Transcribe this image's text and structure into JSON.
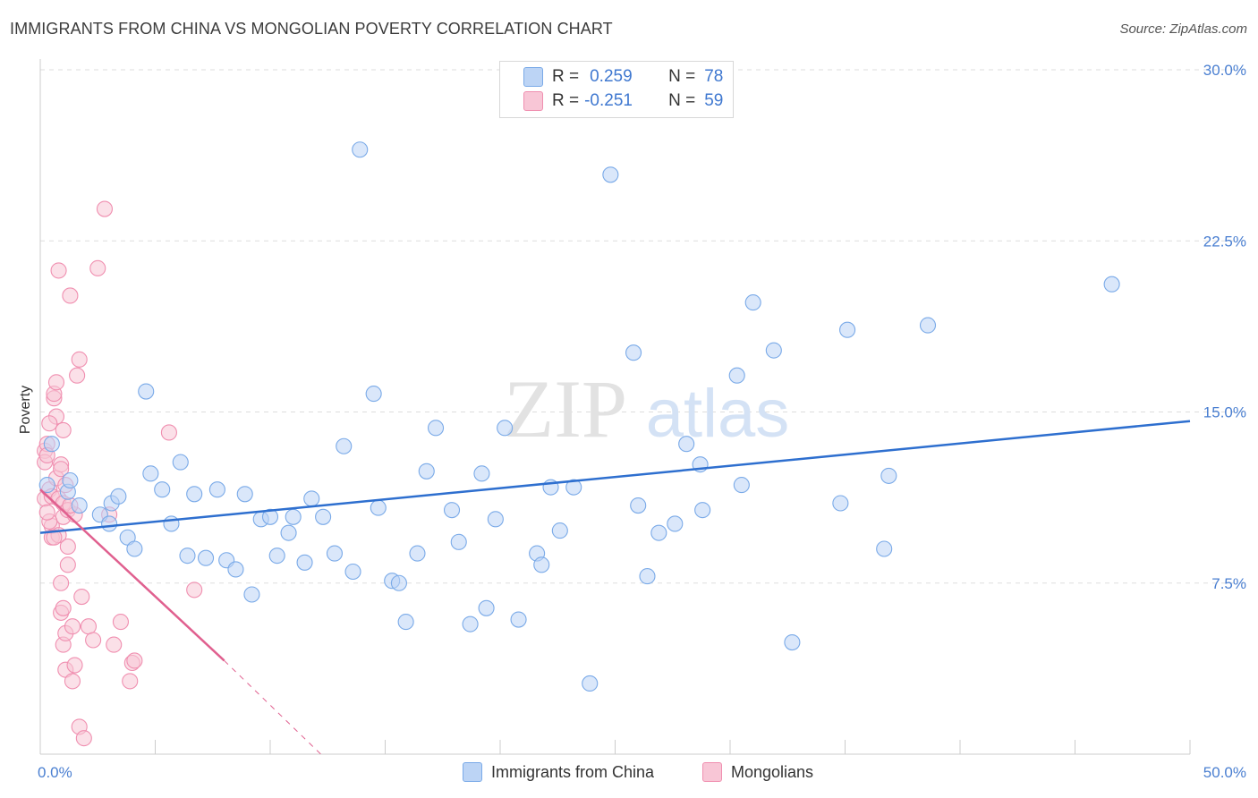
{
  "title": "IMMIGRANTS FROM CHINA VS MONGOLIAN POVERTY CORRELATION CHART",
  "source": "Source: ZipAtlas.com",
  "watermark": {
    "zip": "ZIP",
    "atlas": "atlas"
  },
  "colors": {
    "blue": "#7aaae8",
    "blue_fill": "#bcd4f5",
    "blue_line": "#2e6fcf",
    "pink": "#f08fb0",
    "pink_fill": "#f8c6d6",
    "pink_line": "#e0608f",
    "tick_text": "#4a7fd1",
    "grid": "#dddddd"
  },
  "legend": {
    "rows": [
      {
        "r_label": "R =",
        "r_value": "0.259",
        "n_label": "N =",
        "n_value": "78"
      },
      {
        "r_label": "R =",
        "r_value": "-0.251",
        "n_label": "N =",
        "n_value": "59"
      }
    ]
  },
  "bottom_legend": [
    "Immigrants from China",
    "Mongolians"
  ],
  "chart_data": {
    "type": "scatter",
    "xlabel": "",
    "ylabel": "Poverty",
    "xlim": [
      0,
      50
    ],
    "ylim": [
      0,
      30
    ],
    "x_tick_labels": [
      {
        "value": 0,
        "label": "0.0%"
      },
      {
        "value": 50,
        "label": "50.0%"
      }
    ],
    "y_tick_labels": [
      {
        "value": 7.5,
        "label": "7.5%"
      },
      {
        "value": 15,
        "label": "15.0%"
      },
      {
        "value": 22.5,
        "label": "22.5%"
      },
      {
        "value": 30,
        "label": "30.0%"
      }
    ],
    "grid": true,
    "legend_position": "top-center",
    "series": [
      {
        "name": "Immigrants from China",
        "color": "#7aaae8",
        "r": 0.259,
        "n": 78,
        "trend": {
          "x": [
            0,
            50
          ],
          "y": [
            9.7,
            14.6
          ]
        },
        "points": [
          [
            0.5,
            13.6
          ],
          [
            0.3,
            11.8
          ],
          [
            1.2,
            11.5
          ],
          [
            1.3,
            12.0
          ],
          [
            1.7,
            10.9
          ],
          [
            2.6,
            10.5
          ],
          [
            3.0,
            10.1
          ],
          [
            3.1,
            11.0
          ],
          [
            3.4,
            11.3
          ],
          [
            3.8,
            9.5
          ],
          [
            4.1,
            9.0
          ],
          [
            4.6,
            15.9
          ],
          [
            4.8,
            12.3
          ],
          [
            5.3,
            11.6
          ],
          [
            5.7,
            10.1
          ],
          [
            6.1,
            12.8
          ],
          [
            6.4,
            8.7
          ],
          [
            6.7,
            11.4
          ],
          [
            7.2,
            8.6
          ],
          [
            7.7,
            11.6
          ],
          [
            8.1,
            8.5
          ],
          [
            8.5,
            8.1
          ],
          [
            8.9,
            11.4
          ],
          [
            9.2,
            7.0
          ],
          [
            9.6,
            10.3
          ],
          [
            10.0,
            10.4
          ],
          [
            10.3,
            8.7
          ],
          [
            10.8,
            9.7
          ],
          [
            11.0,
            10.4
          ],
          [
            11.5,
            8.4
          ],
          [
            11.8,
            11.2
          ],
          [
            12.3,
            10.4
          ],
          [
            12.8,
            8.8
          ],
          [
            13.2,
            13.5
          ],
          [
            13.6,
            8.0
          ],
          [
            13.9,
            26.5
          ],
          [
            14.5,
            15.8
          ],
          [
            14.7,
            10.8
          ],
          [
            15.3,
            7.6
          ],
          [
            15.6,
            7.5
          ],
          [
            15.9,
            5.8
          ],
          [
            16.4,
            8.8
          ],
          [
            16.8,
            12.4
          ],
          [
            17.2,
            14.3
          ],
          [
            17.9,
            10.7
          ],
          [
            18.2,
            9.3
          ],
          [
            18.7,
            5.7
          ],
          [
            19.2,
            12.3
          ],
          [
            19.4,
            6.4
          ],
          [
            19.8,
            10.3
          ],
          [
            20.2,
            14.3
          ],
          [
            20.8,
            5.9
          ],
          [
            21.6,
            8.8
          ],
          [
            21.8,
            8.3
          ],
          [
            22.2,
            11.7
          ],
          [
            22.6,
            9.8
          ],
          [
            23.2,
            11.7
          ],
          [
            23.9,
            3.1
          ],
          [
            24.8,
            25.4
          ],
          [
            25.8,
            17.6
          ],
          [
            26.0,
            10.9
          ],
          [
            26.4,
            7.8
          ],
          [
            26.9,
            9.7
          ],
          [
            27.6,
            10.1
          ],
          [
            28.1,
            13.6
          ],
          [
            28.7,
            12.7
          ],
          [
            28.8,
            10.7
          ],
          [
            30.3,
            16.6
          ],
          [
            30.5,
            11.8
          ],
          [
            31.0,
            19.8
          ],
          [
            31.9,
            17.7
          ],
          [
            32.7,
            4.9
          ],
          [
            34.8,
            11.0
          ],
          [
            35.1,
            18.6
          ],
          [
            36.7,
            9.0
          ],
          [
            36.9,
            12.2
          ],
          [
            38.6,
            18.8
          ],
          [
            46.6,
            20.6
          ]
        ]
      },
      {
        "name": "Mongolians",
        "color": "#f08fb0",
        "r": -0.251,
        "n": 59,
        "trend": {
          "x": [
            0,
            8
          ],
          "y": [
            11.6,
            4.1
          ],
          "dashed_to": {
            "x": 12.2,
            "y": 0
          }
        },
        "points": [
          [
            0.2,
            13.3
          ],
          [
            0.2,
            11.2
          ],
          [
            0.2,
            12.8
          ],
          [
            0.3,
            13.6
          ],
          [
            0.3,
            13.1
          ],
          [
            0.4,
            11.6
          ],
          [
            0.5,
            11.3
          ],
          [
            0.5,
            10.0
          ],
          [
            0.5,
            9.5
          ],
          [
            0.6,
            15.6
          ],
          [
            0.6,
            15.8
          ],
          [
            0.7,
            16.3
          ],
          [
            0.7,
            14.8
          ],
          [
            0.7,
            12.1
          ],
          [
            0.8,
            11.2
          ],
          [
            0.8,
            9.6
          ],
          [
            0.9,
            7.5
          ],
          [
            0.9,
            6.2
          ],
          [
            0.9,
            12.7
          ],
          [
            1.0,
            14.2
          ],
          [
            1.0,
            11.0
          ],
          [
            1.0,
            10.4
          ],
          [
            1.0,
            6.4
          ],
          [
            1.0,
            4.8
          ],
          [
            1.1,
            5.3
          ],
          [
            1.1,
            3.7
          ],
          [
            1.2,
            10.7
          ],
          [
            1.2,
            9.1
          ],
          [
            1.2,
            8.3
          ],
          [
            1.3,
            20.1
          ],
          [
            1.4,
            3.2
          ],
          [
            1.4,
            5.6
          ],
          [
            1.5,
            10.5
          ],
          [
            1.5,
            3.9
          ],
          [
            1.6,
            16.6
          ],
          [
            1.7,
            17.3
          ],
          [
            1.7,
            1.2
          ],
          [
            1.8,
            6.9
          ],
          [
            1.9,
            0.7
          ],
          [
            0.8,
            21.2
          ],
          [
            2.1,
            5.6
          ],
          [
            2.3,
            5.0
          ],
          [
            2.5,
            21.3
          ],
          [
            2.8,
            23.9
          ],
          [
            3.0,
            10.5
          ],
          [
            3.2,
            4.8
          ],
          [
            3.5,
            5.8
          ],
          [
            3.9,
            3.2
          ],
          [
            4.0,
            4.0
          ],
          [
            4.1,
            4.1
          ],
          [
            5.6,
            14.1
          ],
          [
            6.7,
            7.2
          ],
          [
            0.4,
            10.2
          ],
          [
            0.6,
            9.5
          ],
          [
            1.1,
            11.8
          ],
          [
            1.3,
            10.9
          ],
          [
            0.9,
            12.5
          ],
          [
            0.4,
            14.5
          ],
          [
            0.3,
            10.6
          ]
        ]
      }
    ]
  }
}
